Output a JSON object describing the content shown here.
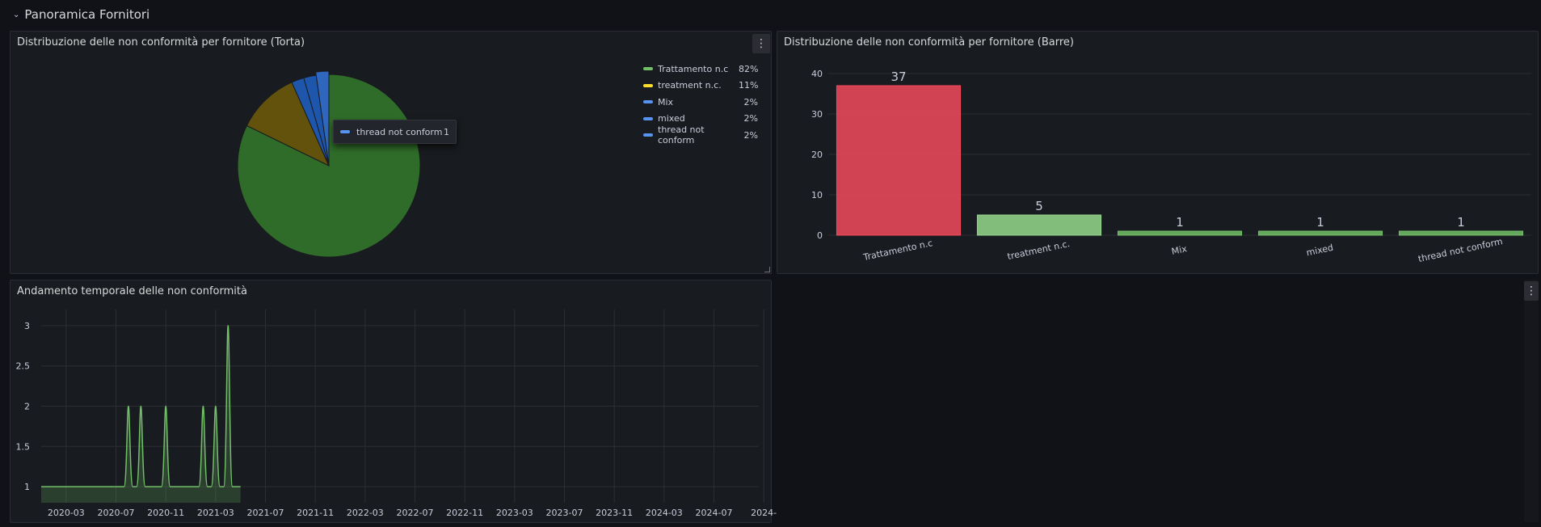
{
  "row": {
    "title": "Panoramica Fornitori",
    "chevron_icon": "chevron-down"
  },
  "pie_panel": {
    "title": "Distribuzione delle non conformità per fornitore (Torta)",
    "menu_label": "⋮",
    "legend": [
      {
        "name": "Trattamento n.c",
        "pct": "82%",
        "color": "#73bf69"
      },
      {
        "name": "treatment n.c.",
        "pct": "11%",
        "color": "#fade2a"
      },
      {
        "name": "Mix",
        "pct": "2%",
        "color": "#5794f2"
      },
      {
        "name": "mixed",
        "pct": "2%",
        "color": "#5794f2"
      },
      {
        "name": "thread not conform",
        "pct": "2%",
        "color": "#5794f2"
      }
    ],
    "tooltip": {
      "name": "thread not conform",
      "value": "1"
    }
  },
  "bar_panel": {
    "title": "Distribuzione delle non conformità per fornitore (Barre)"
  },
  "time_panel": {
    "title": "Andamento temporale delle non conformità"
  },
  "empty_panel": {
    "menu_label": "⋮"
  },
  "chart_data": [
    {
      "type": "pie",
      "categories": [
        "Trattamento n.c",
        "treatment n.c.",
        "Mix",
        "mixed",
        "thread not conform"
      ],
      "values": [
        37,
        5,
        1,
        1,
        1
      ],
      "percent_labels": [
        "82%",
        "11%",
        "2%",
        "2%",
        "2%"
      ],
      "colors": [
        "#73bf69",
        "#fade2a",
        "#5794f2",
        "#5794f2",
        "#5794f2"
      ],
      "legend_position": "right"
    },
    {
      "type": "bar",
      "categories": [
        "Trattamento n.c",
        "treatment  n.c.",
        "Mix",
        "mixed",
        "thread not conform"
      ],
      "values": [
        37,
        5,
        1,
        1,
        1
      ],
      "value_labels": [
        "37",
        "5",
        "1",
        "1",
        "1"
      ],
      "colors": [
        "#f2495c",
        "#96d98d",
        "#73bf69",
        "#73bf69",
        "#73bf69"
      ],
      "yticks": [
        "0",
        "10",
        "20",
        "30",
        "40"
      ],
      "ylim": [
        0,
        40
      ],
      "grid": true
    },
    {
      "type": "line",
      "color": "#73bf69",
      "xticks": [
        "2020-03",
        "2020-07",
        "2020-11",
        "2021-03",
        "2021-07",
        "2021-11",
        "2022-03",
        "2022-07",
        "2022-11",
        "2023-03",
        "2023-07",
        "2023-11",
        "2024-03",
        "2024-07",
        "2024-"
      ],
      "yticks": [
        "1",
        "1.5",
        "2",
        "2.5",
        "3"
      ],
      "ylim": [
        0.8,
        3.2
      ],
      "grid": true,
      "x": [
        "2020-01",
        "2020-08",
        "2020-09",
        "2020-10",
        "2020-11",
        "2021-01",
        "2021-02",
        "2021-03",
        "2021-04",
        "2021-05"
      ],
      "y": [
        1,
        2,
        2,
        1,
        2,
        1,
        2,
        2,
        3,
        1
      ]
    }
  ]
}
